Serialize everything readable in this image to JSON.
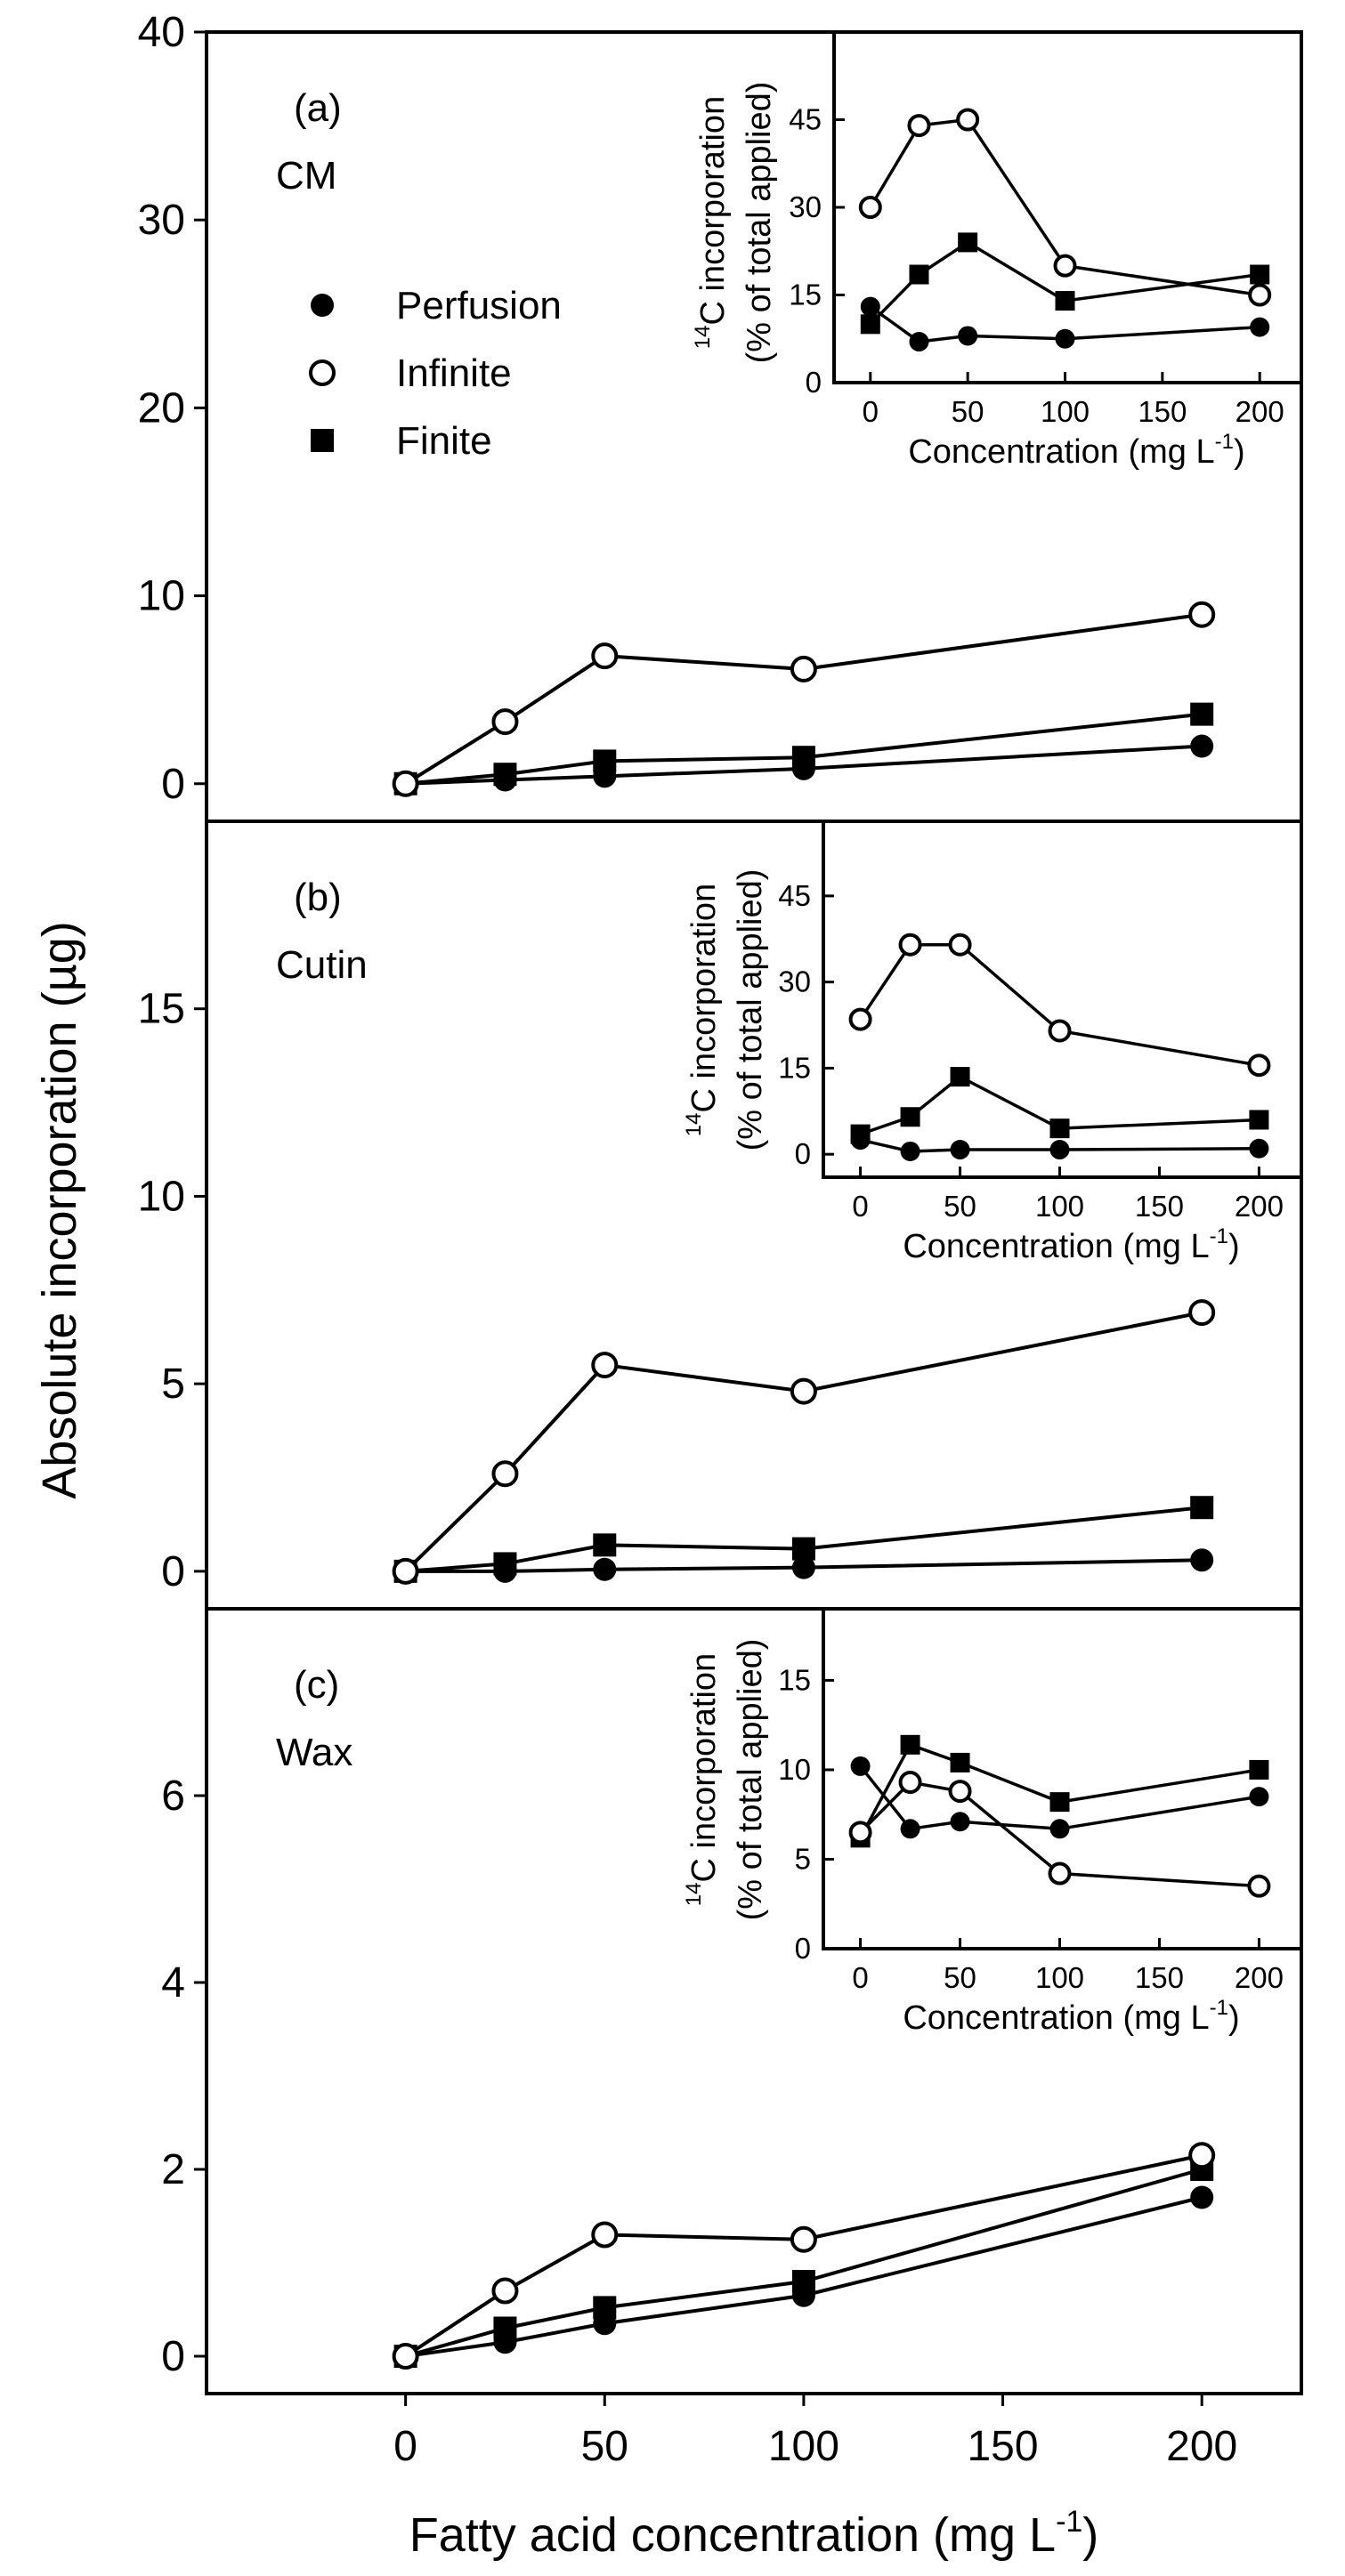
{
  "figure": {
    "ylabel": "Absolute incorporation (µg)",
    "xlabel": "Fatty acid concentration (mg L",
    "xlabel_sup": "-1",
    "xlabel_end": ")"
  },
  "legend": [
    {
      "name": "Perfusion",
      "marker": "filled-circle"
    },
    {
      "name": "Infinite",
      "marker": "open-circle"
    },
    {
      "name": "Finite",
      "marker": "filled-square"
    }
  ],
  "chart_data": [
    {
      "type": "line",
      "panel": "(a)",
      "title": "CM",
      "x": [
        0,
        25,
        50,
        100,
        200
      ],
      "xlim": [
        -50,
        225
      ],
      "ylim": [
        -2,
        40
      ],
      "xticks": [
        0,
        50,
        100,
        150,
        200
      ],
      "yticks": [
        0,
        10,
        20,
        30,
        40
      ],
      "series": [
        {
          "name": "Perfusion",
          "values": [
            0.0,
            0.2,
            0.4,
            0.8,
            2.0
          ]
        },
        {
          "name": "Infinite",
          "values": [
            0.0,
            3.3,
            6.8,
            6.1,
            9.0
          ]
        },
        {
          "name": "Finite",
          "values": [
            0.0,
            0.5,
            1.2,
            1.4,
            3.7
          ]
        }
      ],
      "inset": {
        "ylabel_line1": "C incorporation",
        "ylabel_sup": "14",
        "ylabel_line2": "(% of total applied)",
        "xlabel": "Concentration (mg L",
        "xlabel_sup": "-1",
        "xlabel_end": ")",
        "x": [
          0,
          25,
          50,
          100,
          200
        ],
        "xlim": [
          -15,
          215
        ],
        "ylim": [
          0,
          60
        ],
        "xticks": [
          0,
          50,
          100,
          150,
          200
        ],
        "yticks": [
          0,
          15,
          30,
          45
        ],
        "series": [
          {
            "name": "Perfusion",
            "values": [
              13,
              7,
              8,
              7.5,
              9.5
            ]
          },
          {
            "name": "Infinite",
            "values": [
              30,
              44,
              45,
              20,
              15
            ]
          },
          {
            "name": "Finite",
            "values": [
              10,
              18.5,
              24,
              14,
              18.5
            ]
          }
        ]
      }
    },
    {
      "type": "line",
      "panel": "(b)",
      "title": "Cutin",
      "x": [
        0,
        25,
        50,
        100,
        200
      ],
      "xlim": [
        -50,
        225
      ],
      "ylim": [
        -1,
        20
      ],
      "xticks": [
        0,
        50,
        100,
        150,
        200
      ],
      "yticks": [
        0,
        5,
        10,
        15
      ],
      "series": [
        {
          "name": "Perfusion",
          "values": [
            0.0,
            0.0,
            0.05,
            0.1,
            0.3
          ]
        },
        {
          "name": "Infinite",
          "values": [
            0.0,
            2.6,
            5.5,
            4.8,
            6.9
          ]
        },
        {
          "name": "Finite",
          "values": [
            0.0,
            0.2,
            0.7,
            0.6,
            1.7
          ]
        }
      ],
      "inset": {
        "ylabel_line1": "C incorporation",
        "ylabel_sup": "14",
        "ylabel_line2": "(% of total applied)",
        "xlabel": "Concentration (mg L",
        "xlabel_sup": "-1",
        "xlabel_end": ")",
        "x": [
          0,
          25,
          50,
          100,
          200
        ],
        "xlim": [
          -15,
          215
        ],
        "ylim": [
          -4,
          58
        ],
        "xticks": [
          0,
          50,
          100,
          150,
          200
        ],
        "yticks": [
          0,
          15,
          30,
          45
        ],
        "series": [
          {
            "name": "Perfusion",
            "values": [
              2.5,
              0.5,
              0.8,
              0.8,
              1.0
            ]
          },
          {
            "name": "Infinite",
            "values": [
              23.5,
              36.5,
              36.5,
              21.5,
              15.5
            ]
          },
          {
            "name": "Finite",
            "values": [
              3.5,
              6.5,
              13.5,
              4.5,
              6.0
            ]
          }
        ]
      }
    },
    {
      "type": "line",
      "panel": "(c)",
      "title": "Wax",
      "x": [
        0,
        25,
        50,
        100,
        200
      ],
      "xlim": [
        -50,
        225
      ],
      "ylim": [
        -0.4,
        8
      ],
      "xticks": [
        0,
        50,
        100,
        150,
        200
      ],
      "yticks": [
        0,
        2,
        4,
        6
      ],
      "series": [
        {
          "name": "Perfusion",
          "values": [
            0.0,
            0.15,
            0.35,
            0.65,
            1.7
          ]
        },
        {
          "name": "Infinite",
          "values": [
            0.0,
            0.7,
            1.3,
            1.25,
            2.15
          ]
        },
        {
          "name": "Finite",
          "values": [
            0.0,
            0.3,
            0.52,
            0.8,
            2.0
          ]
        }
      ],
      "inset": {
        "ylabel_line1": "C incorporation",
        "ylabel_sup": "14",
        "ylabel_line2": "(% of total applied)",
        "xlabel": "Concentration (mg L",
        "xlabel_sup": "-1",
        "xlabel_end": ")",
        "x": [
          0,
          25,
          50,
          100,
          200
        ],
        "xlim": [
          -15,
          215
        ],
        "ylim": [
          0,
          19
        ],
        "xticks": [
          0,
          50,
          100,
          150,
          200
        ],
        "yticks": [
          0,
          5,
          10,
          15
        ],
        "series": [
          {
            "name": "Perfusion",
            "values": [
              10.2,
              6.7,
              7.1,
              6.7,
              8.5
            ]
          },
          {
            "name": "Infinite",
            "values": [
              6.5,
              9.3,
              8.8,
              4.2,
              3.5
            ]
          },
          {
            "name": "Finite",
            "values": [
              6.2,
              11.4,
              10.4,
              8.2,
              10.0
            ]
          }
        ]
      }
    }
  ]
}
